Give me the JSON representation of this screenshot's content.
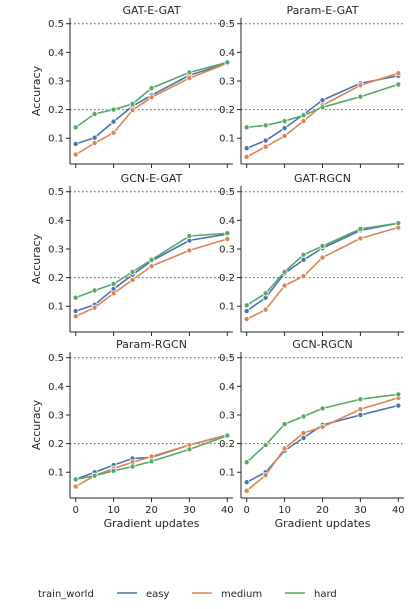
{
  "colors": {
    "easy": "#4c72b0",
    "medium": "#dd8452",
    "hard": "#55a868",
    "axis": "#262626",
    "refline": "#555555"
  },
  "legend": {
    "title": "train_world",
    "entries": [
      "easy",
      "medium",
      "hard"
    ],
    "placement": "bottom-center"
  },
  "chart_data": [
    {
      "type": "line",
      "title": "GAT-E-GAT",
      "xlabel": "",
      "ylabel": "Accuracy",
      "x": [
        0,
        5,
        10,
        15,
        20,
        30,
        40
      ],
      "xticks": [
        0,
        10,
        20,
        30,
        40
      ],
      "yticks": [
        0.1,
        0.2,
        0.3,
        0.4,
        0.5
      ],
      "xlim": [
        -1.5,
        41.5
      ],
      "ylim": [
        0.01,
        0.52
      ],
      "reference_lines": [
        0.2,
        0.5
      ],
      "series": [
        {
          "name": "easy",
          "values": [
            0.08,
            0.102,
            0.158,
            0.212,
            0.25,
            0.32,
            0.362
          ]
        },
        {
          "name": "medium",
          "values": [
            0.043,
            0.083,
            0.119,
            0.198,
            0.243,
            0.31,
            0.362
          ]
        },
        {
          "name": "hard",
          "values": [
            0.138,
            0.185,
            0.2,
            0.22,
            0.275,
            0.33,
            0.365
          ]
        }
      ]
    },
    {
      "type": "line",
      "title": "Param-E-GAT",
      "xlabel": "",
      "ylabel": "",
      "x": [
        0,
        5,
        10,
        15,
        20,
        30,
        40
      ],
      "xticks": [
        0,
        10,
        20,
        30,
        40
      ],
      "yticks": [
        0.1,
        0.2,
        0.3,
        0.4,
        0.5
      ],
      "xlim": [
        -1.5,
        41.5
      ],
      "ylim": [
        0.01,
        0.52
      ],
      "reference_lines": [
        0.2,
        0.5
      ],
      "series": [
        {
          "name": "easy",
          "values": [
            0.065,
            0.092,
            0.135,
            0.183,
            0.233,
            0.292,
            0.318
          ]
        },
        {
          "name": "medium",
          "values": [
            0.035,
            0.07,
            0.108,
            0.16,
            0.215,
            0.285,
            0.327
          ]
        },
        {
          "name": "hard",
          "values": [
            0.138,
            0.145,
            0.16,
            0.18,
            0.208,
            0.245,
            0.288
          ]
        }
      ]
    },
    {
      "type": "line",
      "title": "GCN-E-GAT",
      "xlabel": "",
      "ylabel": "Accuracy",
      "x": [
        0,
        5,
        10,
        15,
        20,
        30,
        40
      ],
      "xticks": [
        0,
        10,
        20,
        30,
        40
      ],
      "yticks": [
        0.1,
        0.2,
        0.3,
        0.4,
        0.5
      ],
      "xlim": [
        -1.5,
        41.5
      ],
      "ylim": [
        0.01,
        0.52
      ],
      "reference_lines": [
        0.2,
        0.5
      ],
      "series": [
        {
          "name": "easy",
          "values": [
            0.083,
            0.105,
            0.16,
            0.21,
            0.258,
            0.33,
            0.352
          ]
        },
        {
          "name": "medium",
          "values": [
            0.065,
            0.095,
            0.145,
            0.192,
            0.24,
            0.295,
            0.335
          ]
        },
        {
          "name": "hard",
          "values": [
            0.13,
            0.155,
            0.178,
            0.22,
            0.262,
            0.345,
            0.355
          ]
        }
      ]
    },
    {
      "type": "line",
      "title": "GAT-RGCN",
      "xlabel": "",
      "ylabel": "",
      "x": [
        0,
        5,
        10,
        15,
        20,
        30,
        40
      ],
      "xticks": [
        0,
        10,
        20,
        30,
        40
      ],
      "yticks": [
        0.1,
        0.2,
        0.3,
        0.4,
        0.5
      ],
      "xlim": [
        -1.5,
        41.5
      ],
      "ylim": [
        0.01,
        0.52
      ],
      "reference_lines": [
        0.2,
        0.5
      ],
      "series": [
        {
          "name": "easy",
          "values": [
            0.083,
            0.13,
            0.215,
            0.262,
            0.303,
            0.365,
            0.39
          ]
        },
        {
          "name": "medium",
          "values": [
            0.055,
            0.088,
            0.172,
            0.205,
            0.27,
            0.337,
            0.375
          ]
        },
        {
          "name": "hard",
          "values": [
            0.103,
            0.145,
            0.22,
            0.28,
            0.31,
            0.37,
            0.39
          ]
        }
      ]
    },
    {
      "type": "line",
      "title": "Param-RGCN",
      "xlabel": "Gradient updates",
      "ylabel": "Accuracy",
      "x": [
        0,
        5,
        10,
        15,
        20,
        30,
        40
      ],
      "xticks": [
        0,
        10,
        20,
        30,
        40
      ],
      "yticks": [
        0.1,
        0.2,
        0.3,
        0.4,
        0.5
      ],
      "xlim": [
        -1.5,
        41.5
      ],
      "ylim": [
        0.01,
        0.52
      ],
      "reference_lines": [
        0.2,
        0.5
      ],
      "series": [
        {
          "name": "easy",
          "values": [
            0.075,
            0.1,
            0.125,
            0.148,
            0.152,
            0.195,
            0.23
          ]
        },
        {
          "name": "medium",
          "values": [
            0.05,
            0.088,
            0.113,
            0.135,
            0.155,
            0.195,
            0.23
          ]
        },
        {
          "name": "hard",
          "values": [
            0.075,
            0.088,
            0.105,
            0.12,
            0.138,
            0.18,
            0.228
          ]
        }
      ]
    },
    {
      "type": "line",
      "title": "GCN-RGCN",
      "xlabel": "Gradient updates",
      "ylabel": "",
      "x": [
        0,
        5,
        10,
        15,
        20,
        30,
        40
      ],
      "xticks": [
        0,
        10,
        20,
        30,
        40
      ],
      "yticks": [
        0.1,
        0.2,
        0.3,
        0.4,
        0.5
      ],
      "xlim": [
        -1.5,
        41.5
      ],
      "ylim": [
        0.01,
        0.52
      ],
      "reference_lines": [
        0.2,
        0.5
      ],
      "series": [
        {
          "name": "easy",
          "values": [
            0.065,
            0.1,
            0.175,
            0.22,
            0.265,
            0.3,
            0.333
          ]
        },
        {
          "name": "medium",
          "values": [
            0.035,
            0.09,
            0.183,
            0.237,
            0.258,
            0.32,
            0.36
          ]
        },
        {
          "name": "hard",
          "values": [
            0.135,
            0.195,
            0.268,
            0.295,
            0.323,
            0.355,
            0.372
          ]
        }
      ]
    }
  ]
}
